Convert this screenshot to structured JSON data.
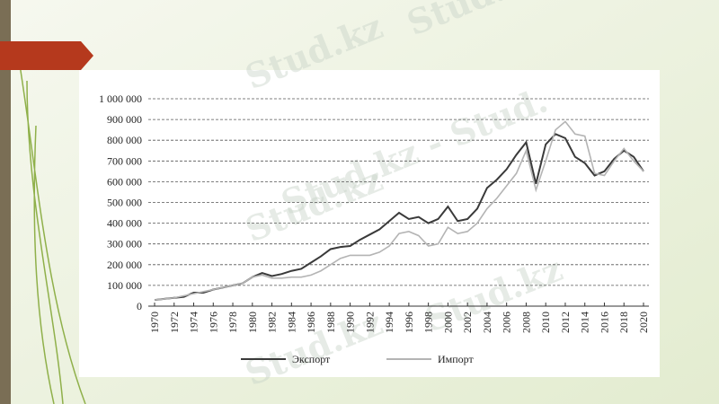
{
  "chart_data": {
    "type": "line",
    "x": [
      1970,
      1971,
      1972,
      1973,
      1974,
      1975,
      1976,
      1977,
      1978,
      1979,
      1980,
      1981,
      1982,
      1983,
      1984,
      1985,
      1986,
      1987,
      1988,
      1989,
      1990,
      1991,
      1992,
      1993,
      1994,
      1995,
      1996,
      1997,
      1998,
      1999,
      2000,
      2001,
      2002,
      2003,
      2004,
      2005,
      2006,
      2007,
      2008,
      2009,
      2010,
      2011,
      2012,
      2013,
      2014,
      2015,
      2016,
      2017,
      2018,
      2019,
      2020
    ],
    "series": [
      {
        "name": "Экспорт",
        "color": "#3a3a3a",
        "values": [
          30000,
          35000,
          40000,
          45000,
          65000,
          65000,
          80000,
          90000,
          100000,
          110000,
          140000,
          160000,
          145000,
          155000,
          170000,
          180000,
          210000,
          240000,
          275000,
          285000,
          290000,
          320000,
          345000,
          370000,
          410000,
          450000,
          420000,
          430000,
          400000,
          420000,
          480000,
          410000,
          420000,
          470000,
          570000,
          610000,
          660000,
          730000,
          790000,
          590000,
          780000,
          830000,
          810000,
          720000,
          690000,
          630000,
          650000,
          710000,
          750000,
          720000,
          650000
        ]
      },
      {
        "name": "Импорт",
        "color": "#b4b4b4",
        "values": [
          30000,
          35000,
          40000,
          50000,
          60000,
          70000,
          80000,
          90000,
          100000,
          110000,
          140000,
          150000,
          135000,
          135000,
          140000,
          140000,
          150000,
          170000,
          200000,
          230000,
          245000,
          245000,
          245000,
          260000,
          290000,
          350000,
          360000,
          340000,
          290000,
          300000,
          380000,
          350000,
          360000,
          400000,
          470000,
          520000,
          580000,
          640000,
          750000,
          560000,
          700000,
          850000,
          890000,
          830000,
          820000,
          640000,
          630000,
          700000,
          760000,
          700000,
          650000
        ]
      }
    ],
    "xlim": [
      1970,
      2020
    ],
    "xticks": [
      1970,
      1972,
      1974,
      1976,
      1978,
      1980,
      1982,
      1984,
      1986,
      1988,
      1990,
      1992,
      1994,
      1996,
      1998,
      2000,
      2002,
      2004,
      2006,
      2008,
      2010,
      2012,
      2014,
      2016,
      2018,
      2020
    ],
    "ylim": [
      0,
      1000000
    ],
    "yticks": [
      0,
      {
        "value": 100000,
        "label": "100 000"
      },
      {
        "value": 200000,
        "label": "200 000"
      },
      {
        "value": 300000,
        "label": "300 000"
      },
      {
        "value": 400000,
        "label": "400 000"
      },
      {
        "value": 500000,
        "label": "500 000"
      },
      {
        "value": 600000,
        "label": "600 000"
      },
      {
        "value": 700000,
        "label": "700 000"
      },
      {
        "value": 800000,
        "label": "800 000"
      },
      {
        "value": 900000,
        "label": "900 000"
      },
      {
        "value": 1000000,
        "label": "1 000 000"
      }
    ],
    "grid": true
  },
  "watermarks": [
    "Stud.kz - Stud.",
    "Stud.kz",
    "Stud.kz - Stud.",
    "Stud.kz",
    "Stud.kz",
    "Stud.kz"
  ]
}
